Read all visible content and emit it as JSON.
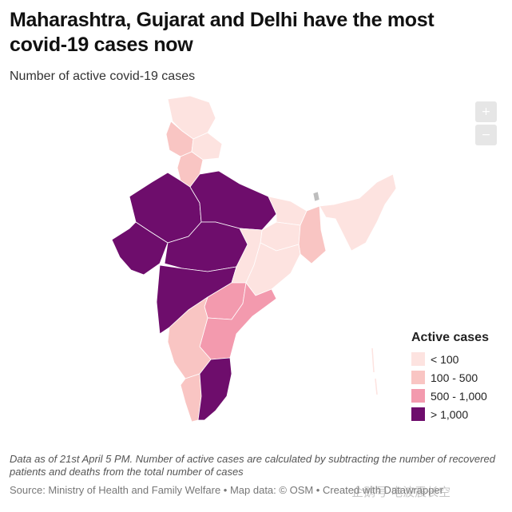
{
  "header": {
    "title": "Maharashtra, Gujarat and Delhi have the most covid-19 cases now",
    "subtitle": "Number of active covid-19 cases"
  },
  "map_controls": {
    "zoom_in": "+",
    "zoom_out": "−"
  },
  "legend": {
    "title": "Active cases",
    "items": [
      {
        "label": "< 100",
        "color": "#fde3e0"
      },
      {
        "label": "100 - 500",
        "color": "#f9c5c3"
      },
      {
        "label": "500 - 1,000",
        "color": "#f39aae"
      },
      {
        "label": "> 1,000",
        "color": "#6e0d6c"
      }
    ]
  },
  "footer": {
    "notes": "Data as of 21st April 5 PM. Number of active cases are calculated by subtracting the number of recovered patients and deaths from the total number of cases",
    "source": "Source: Ministry of Health and Family Welfare • Map data: © OSM • Created with Datawrapper",
    "watermark": "企鹅号 电波震长空"
  },
  "colors": {
    "below_100": "#fde3e0",
    "100_500": "#f9c5c3",
    "500_1000": "#f39aae",
    "above_1000": "#6e0d6c"
  }
}
